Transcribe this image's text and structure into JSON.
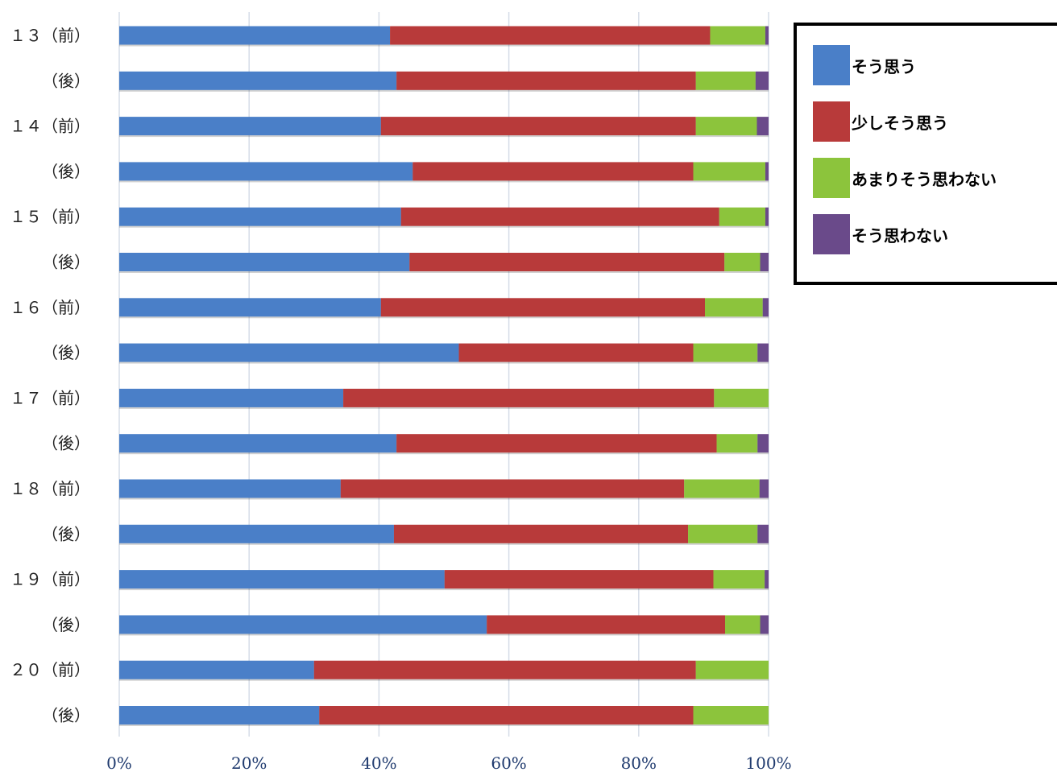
{
  "chart_data": {
    "type": "bar",
    "orientation": "horizontal",
    "stacked": "percent",
    "categories": [
      "１３（前）",
      "（後）",
      "１４（前）",
      "（後）",
      "１５（前）",
      "（後）",
      "１６（前）",
      "（後）",
      "１７（前）",
      "（後）",
      "１８（前）",
      "（後）",
      "１９（前）",
      "（後）",
      "２０（前）",
      "（後）"
    ],
    "series": [
      {
        "name": "そう思う",
        "color": "#4a7fc8",
        "values": [
          41.7,
          42.7,
          40.3,
          45.2,
          43.4,
          44.7,
          40.3,
          52.3,
          34.5,
          42.7,
          34.1,
          42.3,
          50.1,
          56.6,
          30.0,
          30.8
        ]
      },
      {
        "name": "少しそう思う",
        "color": "#b83a3a",
        "values": [
          49.3,
          46.1,
          48.5,
          43.2,
          49.0,
          48.5,
          49.9,
          36.1,
          57.1,
          49.3,
          52.9,
          45.3,
          41.4,
          36.7,
          58.8,
          57.6
        ]
      },
      {
        "name": "あまりそう思わない",
        "color": "#8cc43c",
        "values": [
          8.5,
          9.2,
          9.4,
          11.1,
          7.1,
          5.5,
          8.9,
          9.9,
          8.4,
          6.3,
          11.6,
          10.7,
          7.9,
          5.4,
          11.2,
          11.9
        ]
      },
      {
        "name": "そう思わない",
        "color": "#6a4a8a",
        "values": [
          0.5,
          2.0,
          1.8,
          0.5,
          0.5,
          1.3,
          0.9,
          1.7,
          0.0,
          1.7,
          1.4,
          1.7,
          0.6,
          1.3,
          0.0,
          1.4
        ]
      }
    ],
    "xlim": [
      0,
      100
    ],
    "xticks": [
      "0%",
      "20%",
      "40%",
      "60%",
      "80%",
      "100%"
    ],
    "grid": true,
    "legend_position": "right"
  }
}
